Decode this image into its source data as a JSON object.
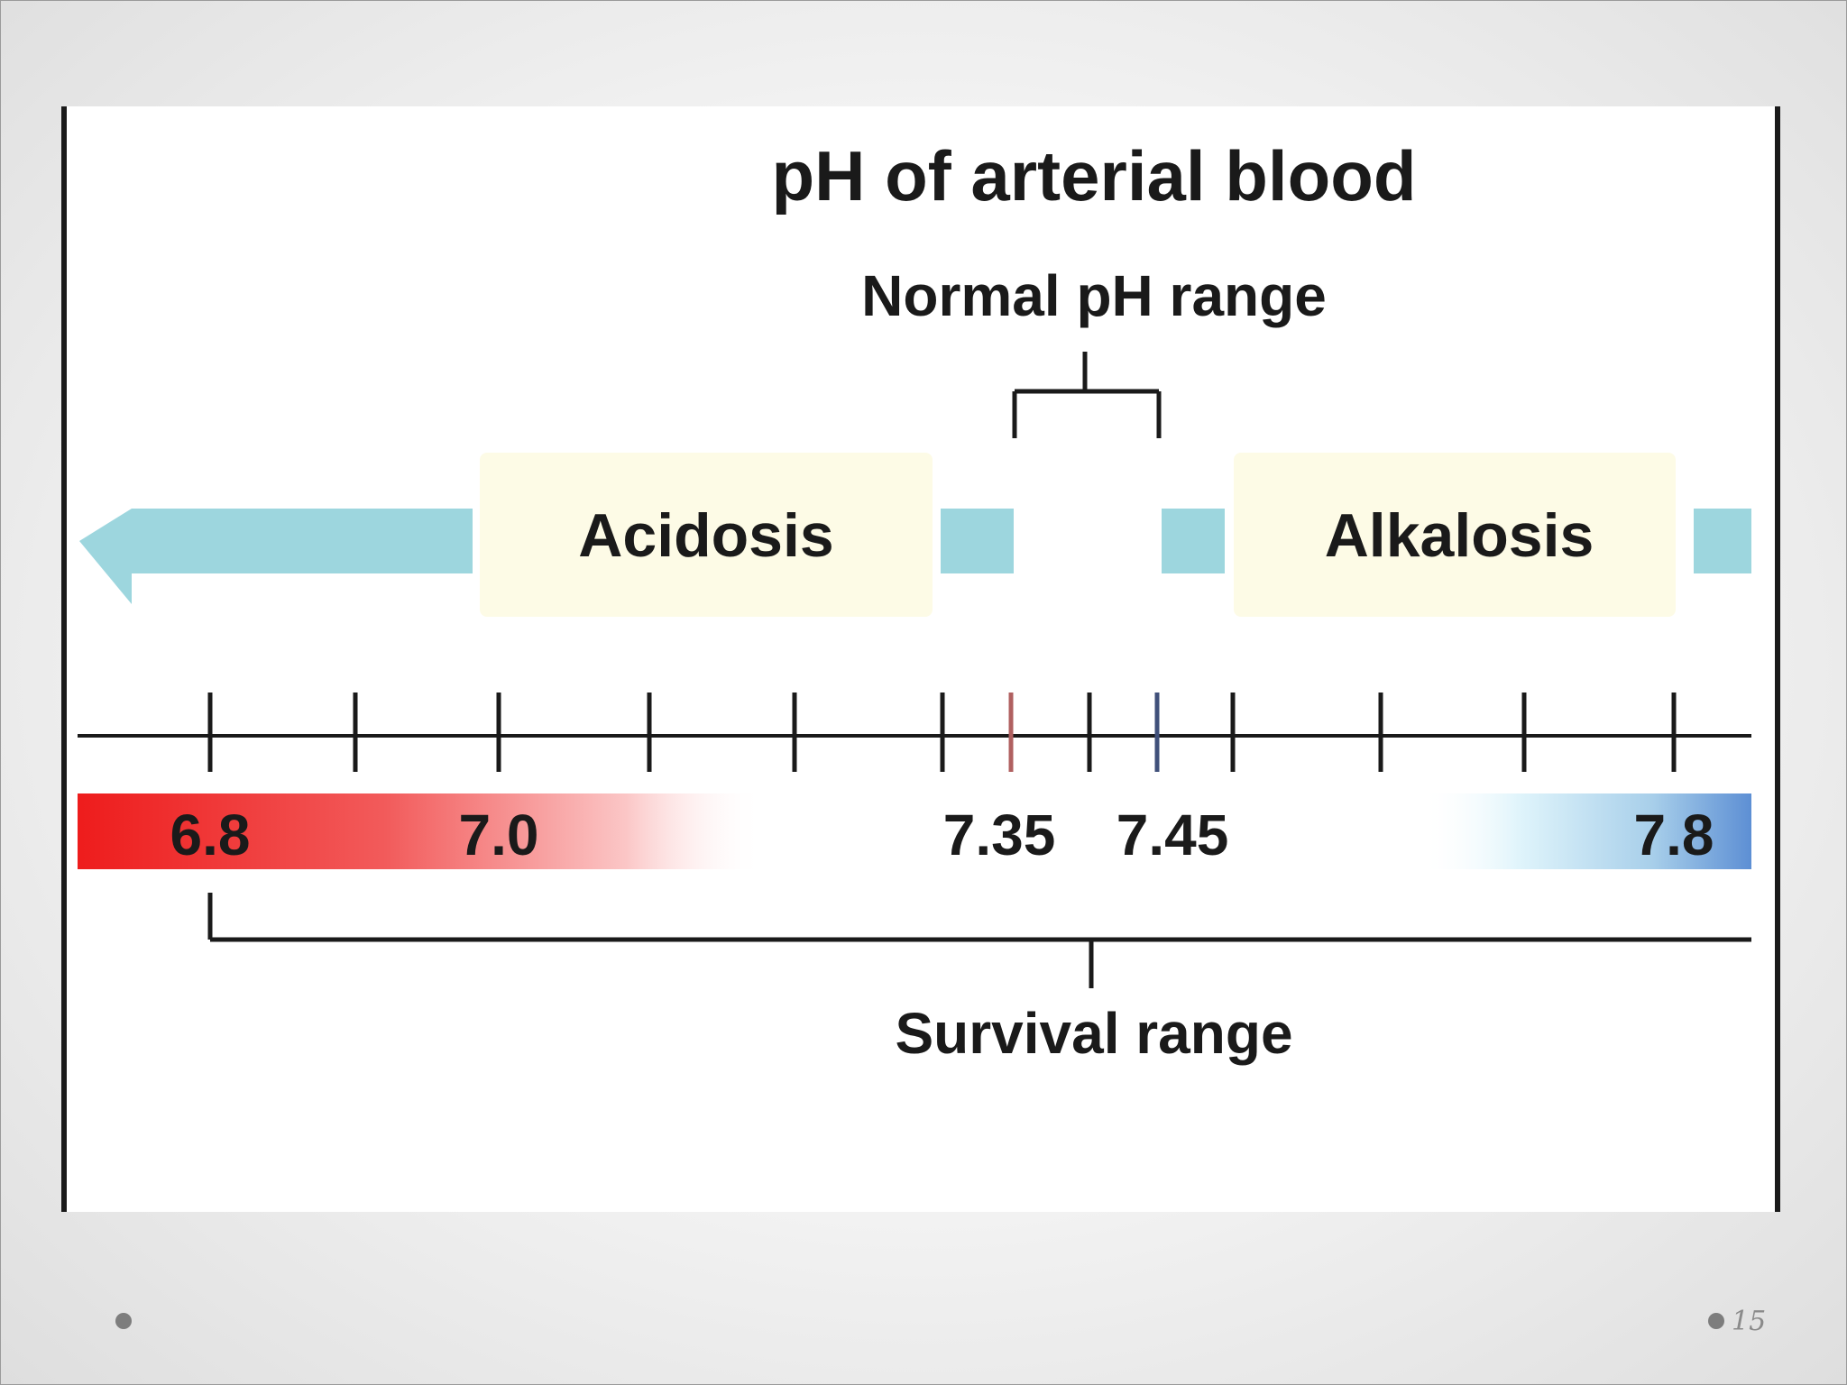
{
  "diagram": {
    "title": "pH of arterial blood",
    "normal_range_label": "Normal pH range",
    "acidosis_label": "Acidosis",
    "alkalosis_label": "Alkalosis",
    "survival_range_label": "Survival range",
    "scale_labels": [
      "6.8",
      "7.0",
      "7.35",
      "7.45",
      "7.8"
    ],
    "colors": {
      "arrow": "#9dd6de",
      "label_box": "#fdfbe6",
      "acid_gradient": "#ee1c1c",
      "alkaline_gradient": "#5d8fd4",
      "axis": "#1a1a1a"
    }
  },
  "footer": {
    "page_number": "15"
  }
}
